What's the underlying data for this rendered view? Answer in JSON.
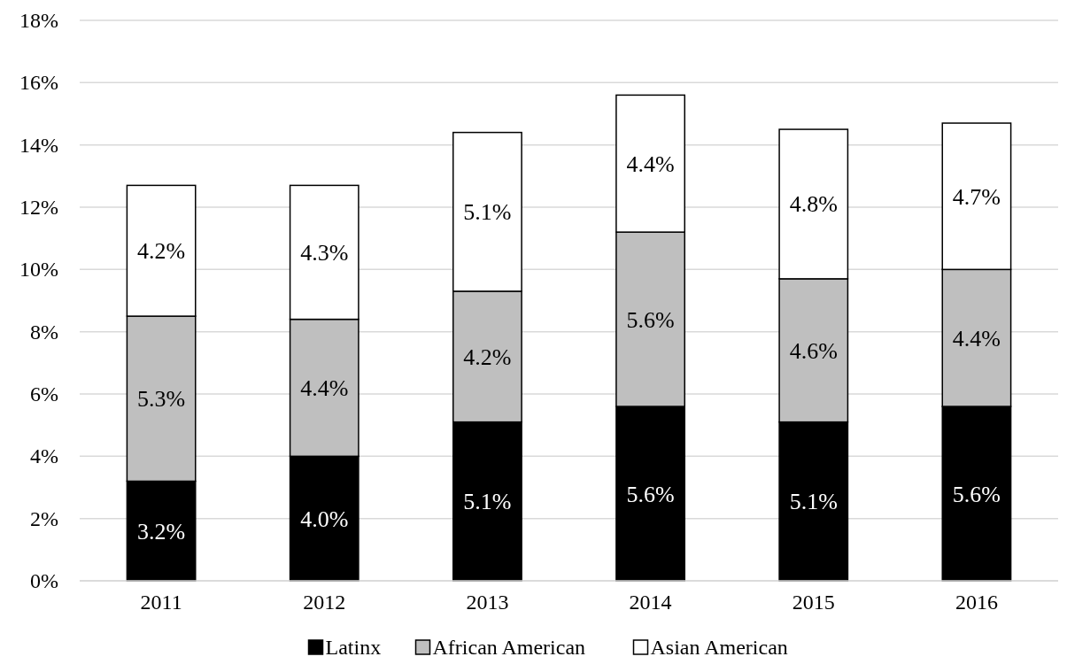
{
  "chart_data": {
    "type": "bar",
    "stacked": true,
    "categories": [
      "2011",
      "2012",
      "2013",
      "2014",
      "2015",
      "2016"
    ],
    "series": [
      {
        "name": "Latinx",
        "color": "#000000",
        "values": [
          3.2,
          4.0,
          5.1,
          5.6,
          5.1,
          5.6
        ],
        "value_labels": [
          "3.2%",
          "4.0%",
          "5.1%",
          "5.6%",
          "5.1%",
          "5.6%"
        ]
      },
      {
        "name": "African American",
        "color": "#bfbfbf",
        "values": [
          5.3,
          4.4,
          4.2,
          5.6,
          4.6,
          4.4
        ],
        "value_labels": [
          "5.3%",
          "4.4%",
          "4.2%",
          "5.6%",
          "4.6%",
          "4.4%"
        ]
      },
      {
        "name": "Asian American",
        "color": "#ffffff",
        "values": [
          4.2,
          4.3,
          5.1,
          4.4,
          4.8,
          4.7
        ],
        "value_labels": [
          "4.2%",
          "4.3%",
          "5.1%",
          "4.4%",
          "4.8%",
          "4.7%"
        ]
      }
    ],
    "ylim": [
      0,
      18
    ],
    "yticks": [
      {
        "value": 0,
        "label": "0%"
      },
      {
        "value": 2,
        "label": "2%"
      },
      {
        "value": 4,
        "label": "4%"
      },
      {
        "value": 6,
        "label": "6%"
      },
      {
        "value": 8,
        "label": "8%"
      },
      {
        "value": 10,
        "label": "10%"
      },
      {
        "value": 12,
        "label": "12%"
      },
      {
        "value": 14,
        "label": "14%"
      },
      {
        "value": 16,
        "label": "16%"
      },
      {
        "value": 18,
        "label": "18%"
      }
    ],
    "grid": "y",
    "legend": "bottom"
  }
}
